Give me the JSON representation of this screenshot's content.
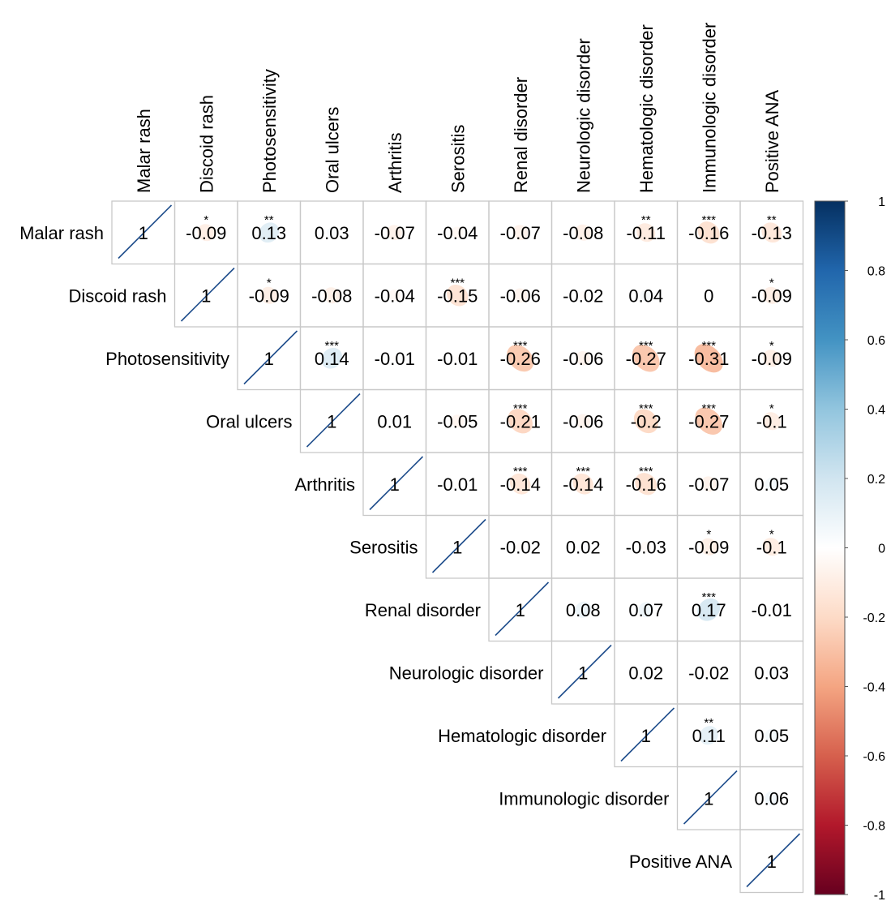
{
  "chart_data": {
    "type": "heatmap",
    "subtype": "upper-triangle correlation matrix",
    "title": "",
    "xlabel": "",
    "ylabel": "",
    "variables": [
      "Malar rash",
      "Discoid rash",
      "Photosensitivity",
      "Oral ulcers",
      "Arthritis",
      "Serositis",
      "Renal disorder",
      "Neurologic disorder",
      "Hematologic disorder",
      "Immunologic disorder",
      "Positive ANA"
    ],
    "diagonal_label": "1",
    "matrix": [
      [
        1,
        -0.09,
        0.13,
        0.03,
        -0.07,
        -0.04,
        -0.07,
        -0.08,
        -0.11,
        -0.16,
        -0.13
      ],
      [
        null,
        1,
        -0.09,
        -0.08,
        -0.04,
        -0.15,
        -0.06,
        -0.02,
        0.04,
        0,
        -0.09
      ],
      [
        null,
        null,
        1,
        0.14,
        -0.01,
        -0.01,
        -0.26,
        -0.06,
        -0.27,
        -0.31,
        -0.09
      ],
      [
        null,
        null,
        null,
        1,
        0.01,
        -0.05,
        -0.21,
        -0.06,
        -0.2,
        -0.27,
        -0.1
      ],
      [
        null,
        null,
        null,
        null,
        1,
        -0.01,
        -0.14,
        -0.14,
        -0.16,
        -0.07,
        0.05
      ],
      [
        null,
        null,
        null,
        null,
        null,
        1,
        -0.02,
        0.02,
        -0.03,
        -0.09,
        -0.1
      ],
      [
        null,
        null,
        null,
        null,
        null,
        null,
        1,
        0.08,
        0.07,
        0.17,
        -0.01
      ],
      [
        null,
        null,
        null,
        null,
        null,
        null,
        null,
        1,
        0.02,
        -0.02,
        0.03
      ],
      [
        null,
        null,
        null,
        null,
        null,
        null,
        null,
        null,
        1,
        0.11,
        0.05
      ],
      [
        null,
        null,
        null,
        null,
        null,
        null,
        null,
        null,
        null,
        1,
        0.06
      ],
      [
        null,
        null,
        null,
        null,
        null,
        null,
        null,
        null,
        null,
        null,
        1
      ]
    ],
    "significance": [
      [
        "",
        "*",
        "**",
        "",
        "",
        "",
        "",
        "",
        "**",
        "***",
        "**"
      ],
      [
        "",
        "",
        "*",
        "",
        "",
        "***",
        "",
        "",
        "",
        "",
        "*"
      ],
      [
        "",
        "",
        "",
        "***",
        "",
        "",
        "***",
        "",
        "***",
        "***",
        "*"
      ],
      [
        "",
        "",
        "",
        "",
        "",
        "",
        "***",
        "",
        "***",
        "***",
        "*"
      ],
      [
        "",
        "",
        "",
        "",
        "",
        "",
        "***",
        "***",
        "***",
        "",
        ""
      ],
      [
        "",
        "",
        "",
        "",
        "",
        "",
        "",
        "",
        "",
        "*",
        "*"
      ],
      [
        "",
        "",
        "",
        "",
        "",
        "",
        "",
        "",
        "",
        "***",
        ""
      ],
      [
        "",
        "",
        "",
        "",
        "",
        "",
        "",
        "",
        "",
        "",
        ""
      ],
      [
        "",
        "",
        "",
        "",
        "",
        "",
        "",
        "",
        "",
        "**",
        ""
      ],
      [
        "",
        "",
        "",
        "",
        "",
        "",
        "",
        "",
        "",
        "",
        ""
      ],
      [
        "",
        "",
        "",
        "",
        "",
        "",
        "",
        "",
        "",
        "",
        ""
      ]
    ],
    "colorbar": {
      "range": [
        -1,
        1
      ],
      "ticks": [
        1,
        0.8,
        0.6,
        0.4,
        0.2,
        0,
        -0.2,
        -0.4,
        -0.6,
        -0.8,
        -1
      ],
      "tick_labels": [
        "1",
        "0.8",
        "0.6",
        "0.4",
        "0.2",
        "0",
        "-0.2",
        "-0.4",
        "-0.6",
        "-0.8",
        "-1"
      ],
      "positive_color": "#053061",
      "neutral_color": "#f7f7f7",
      "negative_color": "#67001f"
    }
  }
}
